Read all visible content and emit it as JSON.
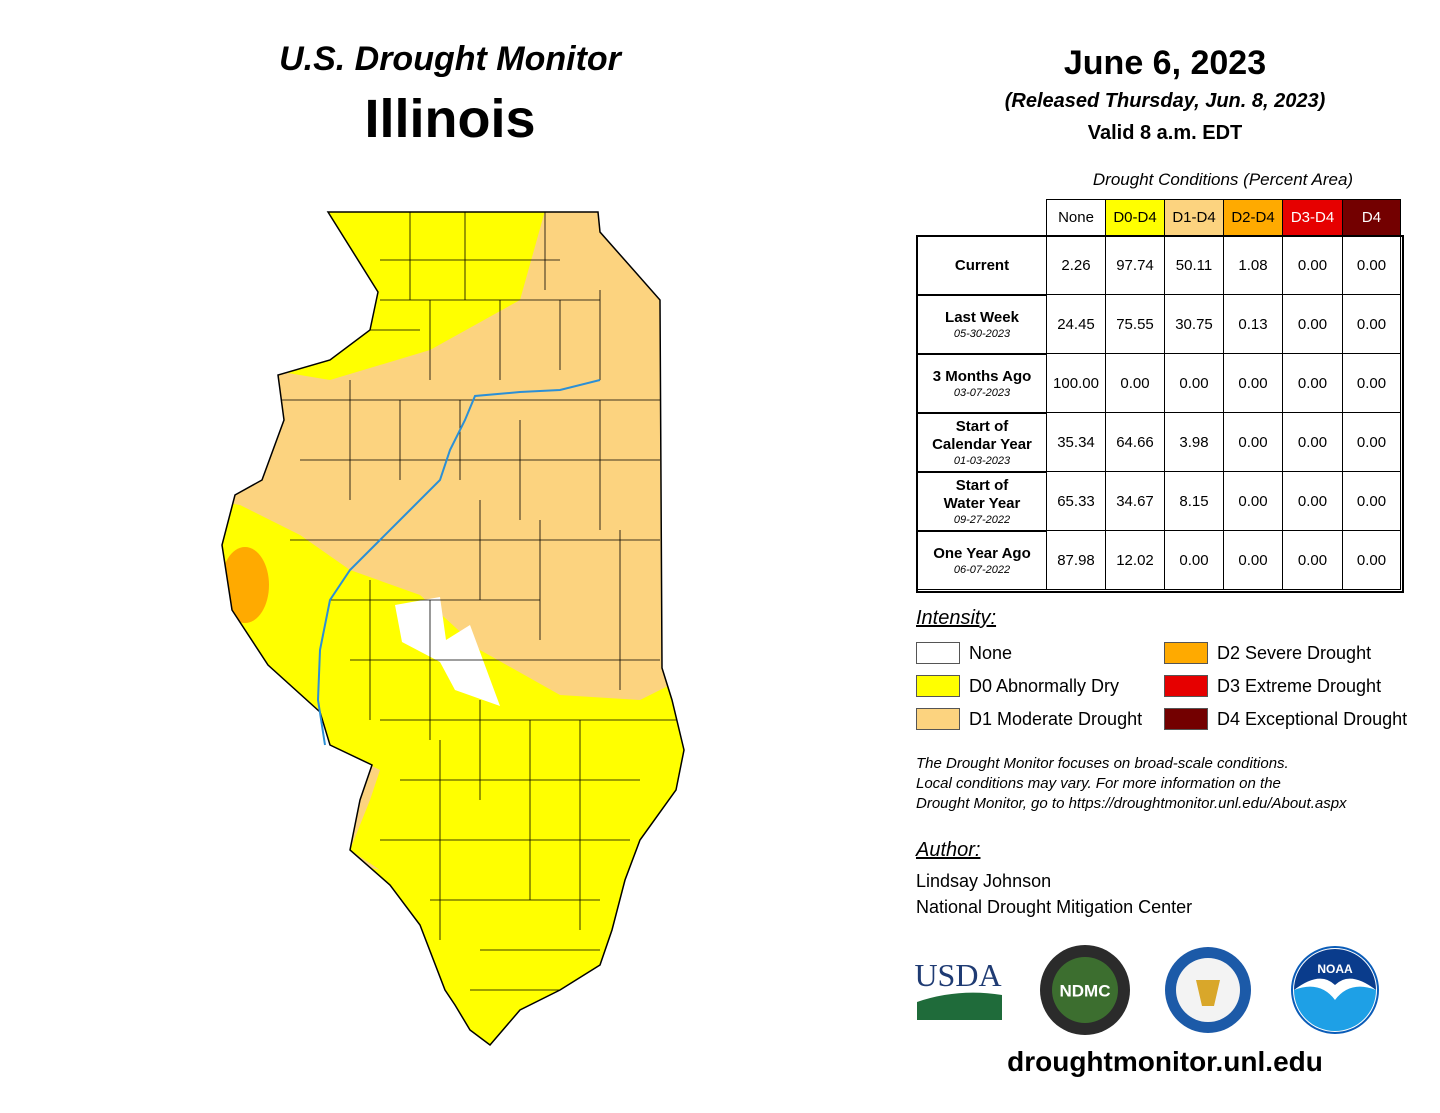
{
  "header": {
    "title": "U.S. Drought Monitor",
    "state": "Illinois"
  },
  "release": {
    "date": "June 6, 2023",
    "released": "(Released Thursday, Jun. 8, 2023)",
    "valid": "Valid 8 a.m. EDT"
  },
  "table": {
    "caption": "Drought Conditions (Percent Area)",
    "columns": [
      {
        "label": "None",
        "color": "#ffffff",
        "text_color": "#000000"
      },
      {
        "label": "D0-D4",
        "color": "#ffff00",
        "text_color": "#000000"
      },
      {
        "label": "D1-D4",
        "color": "#fcd37f",
        "text_color": "#000000"
      },
      {
        "label": "D2-D4",
        "color": "#ffaa00",
        "text_color": "#000000"
      },
      {
        "label": "D3-D4",
        "color": "#e60000",
        "text_color": "#ffffff"
      },
      {
        "label": "D4",
        "color": "#730000",
        "text_color": "#ffffff"
      }
    ],
    "rows": [
      {
        "label": [
          "Current"
        ],
        "values": [
          "2.26",
          "97.74",
          "50.11",
          "1.08",
          "0.00",
          "0.00"
        ]
      },
      {
        "label": [
          "Last Week"
        ],
        "date": "05-30-2023",
        "values": [
          "24.45",
          "75.55",
          "30.75",
          "0.13",
          "0.00",
          "0.00"
        ]
      },
      {
        "label": [
          "3 Months Ago"
        ],
        "date": "03-07-2023",
        "values": [
          "100.00",
          "0.00",
          "0.00",
          "0.00",
          "0.00",
          "0.00"
        ]
      },
      {
        "label": [
          "Start of",
          "Calendar Year"
        ],
        "date": "01-03-2023",
        "values": [
          "35.34",
          "64.66",
          "3.98",
          "0.00",
          "0.00",
          "0.00"
        ]
      },
      {
        "label": [
          "Start of",
          "Water Year"
        ],
        "date": "09-27-2022",
        "values": [
          "65.33",
          "34.67",
          "8.15",
          "0.00",
          "0.00",
          "0.00"
        ]
      },
      {
        "label": [
          "One Year Ago"
        ],
        "date": "06-07-2022",
        "values": [
          "87.98",
          "12.02",
          "0.00",
          "0.00",
          "0.00",
          "0.00"
        ]
      }
    ]
  },
  "legend": {
    "title": "Intensity:",
    "items": [
      {
        "label": "None",
        "color": "#ffffff"
      },
      {
        "label": "D0 Abnormally Dry",
        "color": "#ffff00"
      },
      {
        "label": "D1 Moderate Drought",
        "color": "#fcd37f"
      },
      {
        "label": "D2 Severe Drought",
        "color": "#ffaa00"
      },
      {
        "label": "D3 Extreme Drought",
        "color": "#e60000"
      },
      {
        "label": "D4 Exceptional Drought",
        "color": "#730000"
      }
    ]
  },
  "note": [
    "The Drought Monitor focuses on broad-scale conditions.",
    "Local conditions may vary. For more information on the",
    "Drought Monitor, go to https://droughtmonitor.unl.edu/About.aspx"
  ],
  "author": {
    "heading": "Author:",
    "lines": [
      "Lindsay Johnson",
      "National Drought Mitigation Center"
    ]
  },
  "logos": [
    "USDA",
    "NDMC",
    "NOAA"
  ],
  "website": "droughtmonitor.unl.edu"
}
